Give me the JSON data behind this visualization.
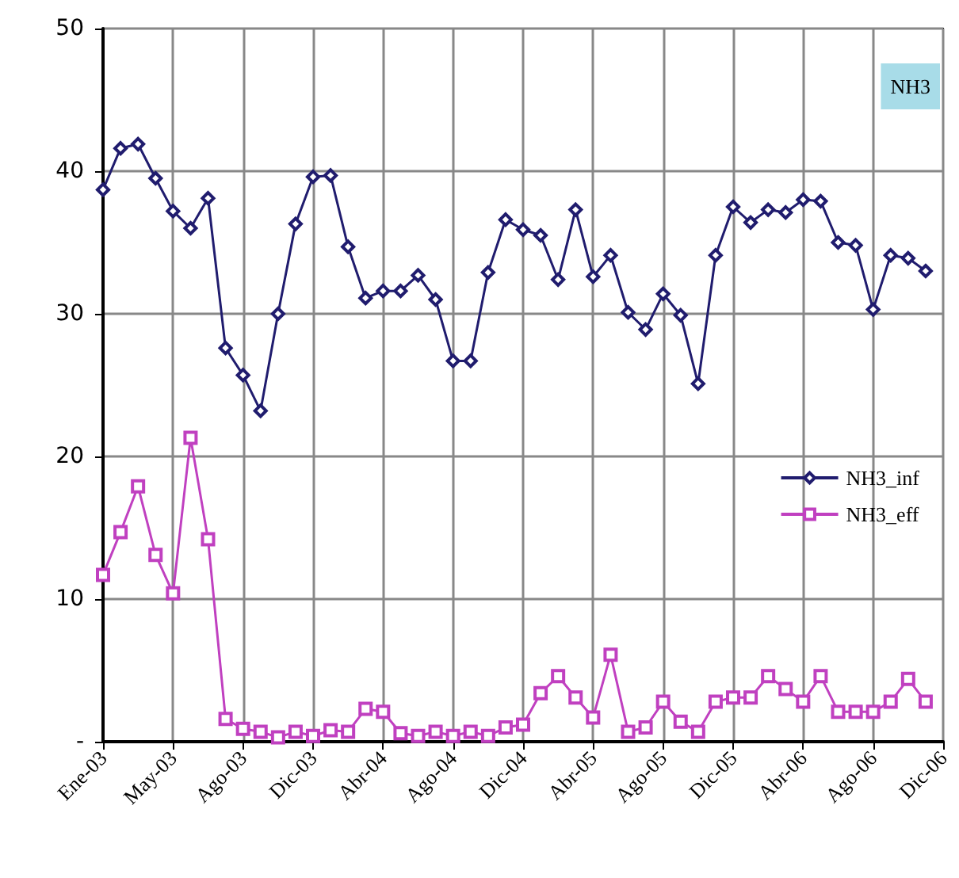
{
  "chart_data": {
    "type": "line",
    "title": "NH3",
    "categories": [
      "Ene-03",
      null,
      null,
      null,
      "May-03",
      null,
      null,
      null,
      "Ago-03",
      null,
      null,
      null,
      "Dic-03",
      null,
      null,
      null,
      "Abr-04",
      null,
      null,
      null,
      "Ago-04",
      null,
      null,
      null,
      "Dic-04",
      null,
      null,
      null,
      "Abr-05",
      null,
      null,
      null,
      "Ago-05",
      null,
      null,
      null,
      "Dic-05",
      null,
      null,
      null,
      "Abr-06",
      null,
      null,
      null,
      "Ago-06",
      null,
      null,
      null,
      "Dic-06"
    ],
    "series": [
      {
        "name": "NH3_inf",
        "color": "#201c6e",
        "marker": "diamond",
        "values": [
          38.7,
          41.6,
          41.9,
          39.5,
          37.2,
          36.0,
          38.1,
          27.6,
          25.7,
          23.2,
          30.0,
          36.3,
          39.6,
          39.7,
          34.7,
          31.1,
          31.6,
          31.6,
          32.7,
          31.0,
          26.7,
          26.7,
          32.9,
          36.6,
          35.9,
          35.5,
          32.4,
          37.3,
          32.6,
          34.1,
          30.1,
          28.9,
          31.4,
          29.9,
          25.1,
          34.1,
          37.5,
          36.4,
          37.3,
          37.1,
          38.0,
          37.9,
          35.0,
          34.8,
          30.3,
          34.1,
          33.9,
          33.0,
          null
        ]
      },
      {
        "name": "NH3_eff",
        "color": "#c040c0",
        "marker": "square",
        "values": [
          11.7,
          14.7,
          17.9,
          13.1,
          10.4,
          21.3,
          14.2,
          1.6,
          0.9,
          0.7,
          0.3,
          0.7,
          0.4,
          0.8,
          0.7,
          2.3,
          2.1,
          0.6,
          0.4,
          0.7,
          0.4,
          0.7,
          0.4,
          1.0,
          1.2,
          3.4,
          4.6,
          3.1,
          1.7,
          6.1,
          0.7,
          1.0,
          2.8,
          1.4,
          0.7,
          2.8,
          3.1,
          3.1,
          4.6,
          3.7,
          2.8,
          4.6,
          2.1,
          2.1,
          2.1,
          2.8,
          4.4,
          2.8,
          null
        ]
      }
    ],
    "ylim": [
      0,
      50
    ],
    "yticks": [
      {
        "value": 0,
        "label": "-"
      },
      10,
      20,
      30,
      40,
      50
    ],
    "grid": true,
    "legend": "right"
  }
}
